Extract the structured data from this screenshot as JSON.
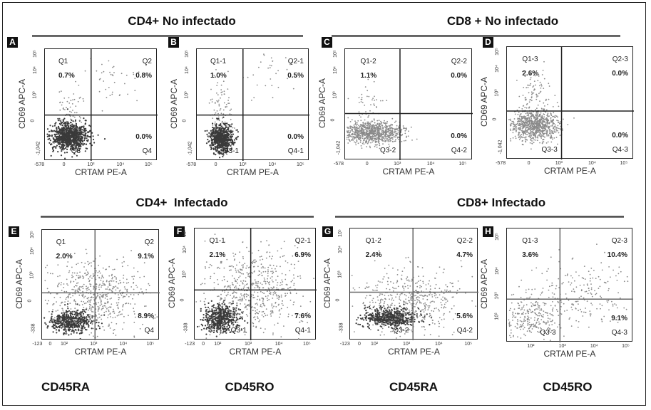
{
  "group_titles": {
    "top_left": "CD4+ No infectado",
    "top_right": "CD8 + No infectado",
    "bottom_left": "CD4+  Infectado",
    "bottom_right": "CD8+ Infectado"
  },
  "bottom_labels": [
    "CD45RA",
    "CD45RO",
    "CD45RA",
    "CD45RO"
  ],
  "colors": {
    "dark_points": "#3a3a3a",
    "light_points": "#8a8a8a",
    "frame": "#222222"
  },
  "chart_data": {
    "type": "scatter",
    "xlabel": "CRTAM PE-A",
    "ylabel": "CD69 APC-A",
    "panels": [
      {
        "letter": "A",
        "quadrants": {
          "q1": "Q1",
          "q2": "Q2",
          "q3": "Q3",
          "q4": "Q4"
        },
        "percent": {
          "q1": "0.7%",
          "q2": "0.8%",
          "q4": "0.0%"
        },
        "xticks": [
          "-578",
          "0",
          "10³",
          "10⁴",
          "10⁵"
        ],
        "yticks": [
          "-1,042",
          "0",
          "10³",
          "10⁴",
          "10⁵"
        ]
      },
      {
        "letter": "B",
        "quadrants": {
          "q1": "Q1-1",
          "q2": "Q2-1",
          "q3": "Q3-1",
          "q4": "Q4-1"
        },
        "percent": {
          "q1": "1.0%",
          "q2": "0.5%",
          "q4": "0.0%"
        },
        "xticks": [
          "-578",
          "0",
          "10³",
          "10⁴",
          "10⁵"
        ],
        "yticks": [
          "-1,042",
          "0",
          "10³",
          "10⁴",
          "10⁵"
        ]
      },
      {
        "letter": "C",
        "quadrants": {
          "q1": "Q1-2",
          "q2": "Q2-2",
          "q3": "Q3-2",
          "q4": "Q4-2"
        },
        "percent": {
          "q1": "1.1%",
          "q2": "0.0%",
          "q4": "0.0%"
        },
        "xticks": [
          "-578",
          "0",
          "10³",
          "10⁴",
          "10⁵"
        ],
        "yticks": [
          "-1,042",
          "0",
          "10³",
          "10⁴",
          "10⁵"
        ]
      },
      {
        "letter": "D",
        "quadrants": {
          "q1": "Q1-3",
          "q2": "Q2-3",
          "q3": "Q3-3",
          "q4": "Q4-3"
        },
        "percent": {
          "q1": "2.6%",
          "q2": "0.0%",
          "q4": "0.0%"
        },
        "xticks": [
          "-578",
          "0",
          "10³",
          "10⁴",
          "10⁵"
        ],
        "yticks": [
          "-1,042",
          "0",
          "10³",
          "10⁴",
          "10⁵"
        ]
      },
      {
        "letter": "E",
        "quadrants": {
          "q1": "Q1",
          "q2": "Q2",
          "q3": "",
          "q4": "Q4"
        },
        "percent": {
          "q1": "2.0%",
          "q2": "9.1%",
          "q4": "8.9%"
        },
        "xticks": [
          "-123",
          "0",
          "10²",
          "10³",
          "10⁴",
          "10⁵"
        ],
        "yticks": [
          "-338",
          "0",
          "10³",
          "10⁴",
          "10⁵"
        ]
      },
      {
        "letter": "F",
        "quadrants": {
          "q1": "Q1-1",
          "q2": "Q2-1",
          "q3": "Q3-1",
          "q4": "Q4-1"
        },
        "percent": {
          "q1": "2.1%",
          "q2": "6.9%",
          "q4": "7.6%"
        },
        "xticks": [
          "-123",
          "0",
          "10²",
          "10³",
          "10⁴",
          "10⁵"
        ],
        "yticks": [
          "-338",
          "0",
          "10³",
          "10⁴",
          "10⁵"
        ]
      },
      {
        "letter": "G",
        "quadrants": {
          "q1": "Q1-2",
          "q2": "Q2-2",
          "q3": "Q3-2",
          "q4": "Q4-2"
        },
        "percent": {
          "q1": "2.4%",
          "q2": "4.7%",
          "q4": "5.6%"
        },
        "xticks": [
          "-123",
          "0",
          "10²",
          "10³",
          "10⁴",
          "10⁵"
        ],
        "yticks": [
          "-338",
          "0",
          "10³",
          "10⁴",
          "10⁵"
        ]
      },
      {
        "letter": "H",
        "quadrants": {
          "q1": "Q1-3",
          "q2": "Q2-3",
          "q3": "Q3-3",
          "q4": "Q4-3"
        },
        "percent": {
          "q1": "3.6%",
          "q2": "10.4%",
          "q4": "9.1%"
        },
        "xticks": [
          "10²",
          "10³",
          "10⁴",
          "10⁵"
        ],
        "yticks": [
          "10²",
          "10³",
          "10⁴",
          "10⁵"
        ]
      }
    ]
  }
}
